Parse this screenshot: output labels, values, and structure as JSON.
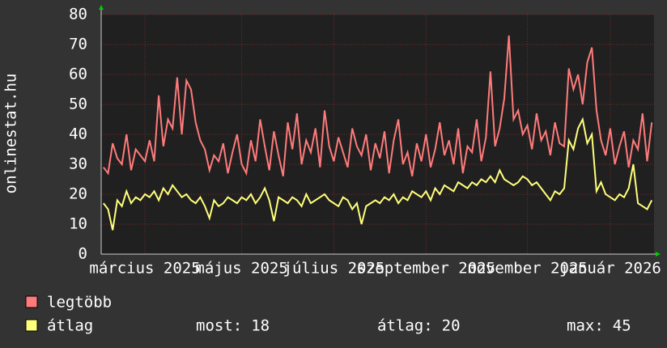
{
  "chart_data": {
    "type": "line",
    "y_label": "onlinestat.hu",
    "categories": [
      null,
      null,
      null,
      null,
      null,
      null,
      null,
      null,
      null,
      "március 2025",
      null,
      null,
      null,
      null,
      null,
      null,
      null,
      null,
      null,
      null,
      null,
      null,
      null,
      null,
      null,
      null,
      null,
      null,
      null,
      null,
      "május 2025",
      null,
      null,
      null,
      null,
      null,
      null,
      null,
      null,
      null,
      null,
      null,
      null,
      null,
      null,
      null,
      null,
      null,
      null,
      null,
      "július 2025",
      null,
      null,
      null,
      null,
      null,
      null,
      null,
      null,
      null,
      null,
      null,
      null,
      null,
      null,
      null,
      null,
      null,
      null,
      null,
      "szeptember 2025",
      null,
      null,
      null,
      null,
      null,
      null,
      null,
      null,
      null,
      null,
      null,
      null,
      null,
      null,
      null,
      null,
      null,
      null,
      null,
      null,
      null,
      "november 2025",
      null,
      null,
      null,
      null,
      null,
      null,
      null,
      null,
      null,
      null,
      null,
      null,
      null,
      null,
      null,
      null,
      null,
      "január 2026",
      null,
      null,
      null,
      null,
      null,
      null,
      null,
      null,
      null
    ],
    "series": [
      {
        "name": "legtöbb",
        "color": "#ff7b7b",
        "values": [
          29,
          27,
          37,
          32,
          30,
          40,
          28,
          35,
          33,
          31,
          38,
          31,
          53,
          36,
          45,
          42,
          59,
          40,
          58,
          55,
          44,
          38,
          35,
          28,
          33,
          31,
          37,
          27,
          34,
          40,
          30,
          27,
          38,
          31,
          45,
          36,
          28,
          41,
          33,
          26,
          44,
          35,
          47,
          30,
          38,
          34,
          42,
          29,
          48,
          36,
          31,
          39,
          34,
          29,
          42,
          36,
          33,
          40,
          28,
          37,
          32,
          41,
          27,
          38,
          45,
          30,
          34,
          26,
          37,
          31,
          40,
          29,
          35,
          44,
          33,
          38,
          30,
          42,
          27,
          36,
          34,
          45,
          31,
          39,
          61,
          36,
          42,
          52,
          73,
          45,
          48,
          40,
          43,
          35,
          47,
          38,
          41,
          33,
          44,
          37,
          36,
          62,
          55,
          60,
          50,
          64,
          69,
          48,
          38,
          33,
          42,
          30,
          36,
          41,
          29,
          38,
          35,
          47,
          31,
          44
        ]
      },
      {
        "name": "átlag",
        "color": "#ffff7b",
        "values": [
          17,
          15,
          8,
          18,
          16,
          21,
          17,
          19,
          18,
          20,
          19,
          21,
          18,
          22,
          20,
          23,
          21,
          19,
          20,
          18,
          17,
          19,
          16,
          12,
          18,
          16,
          17,
          19,
          18,
          17,
          19,
          18,
          20,
          17,
          19,
          22,
          18,
          11,
          19,
          18,
          17,
          19,
          18,
          16,
          20,
          17,
          18,
          19,
          20,
          18,
          17,
          16,
          19,
          18,
          15,
          17,
          10,
          16,
          17,
          18,
          17,
          19,
          18,
          20,
          17,
          19,
          18,
          21,
          20,
          19,
          21,
          18,
          22,
          20,
          23,
          22,
          21,
          24,
          23,
          22,
          24,
          23,
          25,
          24,
          26,
          24,
          28,
          25,
          24,
          23,
          24,
          26,
          25,
          23,
          24,
          22,
          20,
          18,
          21,
          20,
          22,
          38,
          35,
          42,
          45,
          37,
          40,
          21,
          24,
          20,
          19,
          18,
          20,
          19,
          22,
          30,
          17,
          16,
          15,
          18
        ]
      }
    ],
    "stats": [
      {
        "label": "most:",
        "value": 18
      },
      {
        "label": "átlag:",
        "value": 20
      },
      {
        "label": "max:",
        "value": 45
      }
    ],
    "ylim": [
      0,
      80
    ],
    "yticks": [
      0,
      10,
      20,
      30,
      40,
      50,
      60,
      70,
      80
    ],
    "grid": true
  }
}
